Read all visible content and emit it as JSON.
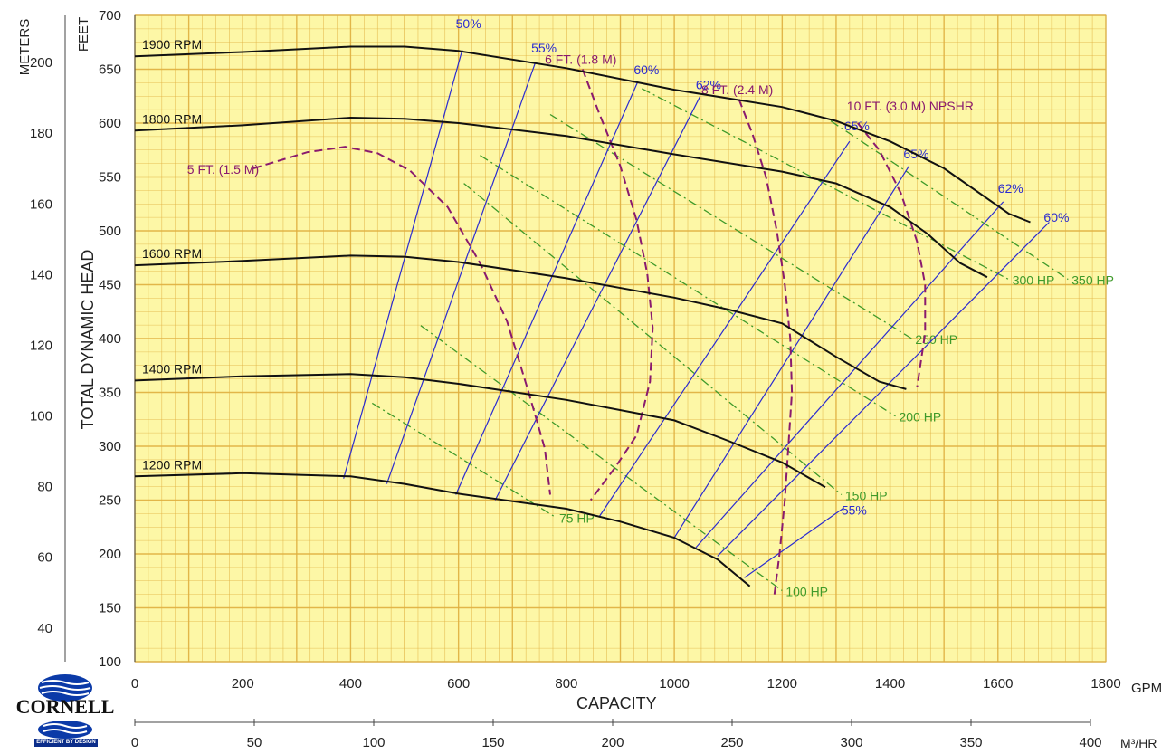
{
  "chart_data": {
    "type": "line",
    "x_axis": {
      "label": "CAPACITY",
      "unit": "GPM",
      "min": 0,
      "max": 1800,
      "ticks": [
        0,
        200,
        400,
        600,
        800,
        1000,
        1200,
        1400,
        1600,
        1800
      ]
    },
    "x2_axis": {
      "unit": "M³/HR",
      "min": 0,
      "max": 400,
      "ticks": [
        0,
        50,
        100,
        150,
        200,
        250,
        300,
        350,
        400
      ]
    },
    "y_axis": {
      "label": "TOTAL DYNAMIC HEAD",
      "unit": "FEET",
      "min": 100,
      "max": 700,
      "ticks": [
        100,
        150,
        200,
        250,
        300,
        350,
        400,
        450,
        500,
        550,
        600,
        650,
        700
      ]
    },
    "y2_axis": {
      "unit": "METERS",
      "ticks": [
        40,
        60,
        80,
        100,
        120,
        140,
        160,
        180,
        200
      ]
    },
    "grid": true,
    "speed_curves": [
      {
        "name": "1900 RPM",
        "points": [
          [
            0,
            662
          ],
          [
            200,
            666
          ],
          [
            400,
            671
          ],
          [
            500,
            671
          ],
          [
            600,
            667
          ],
          [
            800,
            651
          ],
          [
            1000,
            631
          ],
          [
            1200,
            615
          ],
          [
            1300,
            602
          ],
          [
            1400,
            583
          ],
          [
            1500,
            558
          ],
          [
            1620,
            516
          ],
          [
            1660,
            508
          ]
        ]
      },
      {
        "name": "1800 RPM",
        "points": [
          [
            0,
            593
          ],
          [
            200,
            598
          ],
          [
            400,
            605
          ],
          [
            500,
            604
          ],
          [
            600,
            600
          ],
          [
            800,
            588
          ],
          [
            1000,
            571
          ],
          [
            1200,
            555
          ],
          [
            1300,
            544
          ],
          [
            1400,
            522
          ],
          [
            1470,
            497
          ],
          [
            1530,
            470
          ],
          [
            1580,
            457
          ]
        ]
      },
      {
        "name": "1600 RPM",
        "points": [
          [
            0,
            468
          ],
          [
            200,
            472
          ],
          [
            400,
            477
          ],
          [
            500,
            476
          ],
          [
            600,
            471
          ],
          [
            800,
            456
          ],
          [
            1000,
            438
          ],
          [
            1100,
            427
          ],
          [
            1200,
            414
          ],
          [
            1300,
            383
          ],
          [
            1380,
            360
          ],
          [
            1430,
            353
          ]
        ]
      },
      {
        "name": "1400 RPM",
        "points": [
          [
            0,
            361
          ],
          [
            200,
            365
          ],
          [
            400,
            367
          ],
          [
            500,
            364
          ],
          [
            600,
            358
          ],
          [
            800,
            343
          ],
          [
            1000,
            324
          ],
          [
            1100,
            305
          ],
          [
            1200,
            285
          ],
          [
            1280,
            262
          ]
        ]
      },
      {
        "name": "1200 RPM",
        "points": [
          [
            0,
            272
          ],
          [
            200,
            275
          ],
          [
            400,
            272
          ],
          [
            500,
            265
          ],
          [
            600,
            256
          ],
          [
            800,
            242
          ],
          [
            900,
            230
          ],
          [
            1000,
            215
          ],
          [
            1080,
            195
          ],
          [
            1140,
            170
          ]
        ]
      }
    ],
    "efficiency_lines": [
      {
        "name": "50%",
        "label_pos": [
          605,
          685
        ],
        "points": [
          [
            387,
            270
          ],
          [
            607,
            668
          ]
        ]
      },
      {
        "name": "55%",
        "label_pos": [
          745,
          662
        ],
        "points": [
          [
            467,
            265
          ],
          [
            743,
            657
          ]
        ]
      },
      {
        "name": "60%",
        "label_pos": [
          935,
          642
        ],
        "points": [
          [
            595,
            255
          ],
          [
            932,
            638
          ]
        ]
      },
      {
        "name": "62%",
        "label_pos": [
          1050,
          628
        ],
        "points": [
          [
            668,
            250
          ],
          [
            1048,
            625
          ]
        ]
      },
      {
        "name": "65%",
        "label_pos": [
          1325,
          590
        ],
        "points": [
          [
            860,
            234
          ],
          [
            1325,
            583
          ]
        ]
      },
      {
        "name": "65%",
        "label_pos": [
          1435,
          564
        ],
        "points": [
          [
            1000,
            215
          ],
          [
            1435,
            560
          ]
        ]
      },
      {
        "name": "62%",
        "label_pos": [
          1610,
          532
        ],
        "points": [
          [
            1040,
            206
          ],
          [
            1610,
            527
          ]
        ]
      },
      {
        "name": "60%",
        "label_pos": [
          1695,
          505
        ],
        "points": [
          [
            1080,
            198
          ],
          [
            1695,
            508
          ]
        ]
      },
      {
        "name": "55%",
        "label_pos": [
          1320,
          233
        ],
        "points": [
          [
            1130,
            178
          ],
          [
            1315,
            243
          ]
        ]
      }
    ],
    "npshr_curves": [
      {
        "name": "5 FT. (1.5 M)",
        "points": [
          [
            220,
            558
          ],
          [
            320,
            573
          ],
          [
            390,
            578
          ],
          [
            450,
            572
          ],
          [
            510,
            556
          ],
          [
            580,
            522
          ],
          [
            640,
            470
          ],
          [
            690,
            416
          ],
          [
            730,
            350
          ],
          [
            760,
            298
          ],
          [
            770,
            255
          ]
        ]
      },
      {
        "name": "6 FT. (1.8 M)",
        "points": [
          [
            830,
            650
          ],
          [
            860,
            610
          ],
          [
            900,
            560
          ],
          [
            930,
            510
          ],
          [
            950,
            460
          ],
          [
            960,
            410
          ],
          [
            955,
            360
          ],
          [
            930,
            310
          ],
          [
            890,
            280
          ],
          [
            845,
            250
          ]
        ]
      },
      {
        "name": "8 FT. (2.4 M)",
        "points": [
          [
            1120,
            622
          ],
          [
            1145,
            590
          ],
          [
            1170,
            550
          ],
          [
            1190,
            500
          ],
          [
            1205,
            450
          ],
          [
            1215,
            400
          ],
          [
            1218,
            350
          ],
          [
            1205,
            250
          ],
          [
            1195,
            200
          ],
          [
            1185,
            160
          ]
        ]
      },
      {
        "name": "10 FT. (3.0 M) NPSHR",
        "points": [
          [
            1340,
            600
          ],
          [
            1380,
            575
          ],
          [
            1420,
            535
          ],
          [
            1450,
            490
          ],
          [
            1465,
            450
          ],
          [
            1465,
            405
          ],
          [
            1450,
            355
          ]
        ]
      }
    ],
    "horsepower_lines": [
      {
        "name": "75 HP",
        "points": [
          [
            440,
            340
          ],
          [
            780,
            234
          ]
        ]
      },
      {
        "name": "100 HP",
        "points": [
          [
            530,
            412
          ],
          [
            1200,
            166
          ]
        ]
      },
      {
        "name": "150 HP",
        "points": [
          [
            610,
            544
          ],
          [
            1310,
            255
          ]
        ]
      },
      {
        "name": "200 HP",
        "points": [
          [
            640,
            570
          ],
          [
            1410,
            328
          ]
        ]
      },
      {
        "name": "250 HP",
        "points": [
          [
            770,
            608
          ],
          [
            1440,
            400
          ]
        ]
      },
      {
        "name": "300 HP",
        "points": [
          [
            940,
            632
          ],
          [
            1620,
            455
          ]
        ]
      },
      {
        "name": "350 HP",
        "points": [
          [
            1290,
            602
          ],
          [
            1730,
            455
          ]
        ]
      }
    ],
    "colors": {
      "background": "#fdf7a6",
      "grid": "#e0b040",
      "speed": "#111111",
      "efficiency": "#2b2bd0",
      "npshr": "#8a1a6e",
      "horsepower": "#3f9a2a"
    }
  },
  "logo": {
    "name": "CORNELL",
    "tagline": "EFFICIENT BY DESIGN"
  }
}
